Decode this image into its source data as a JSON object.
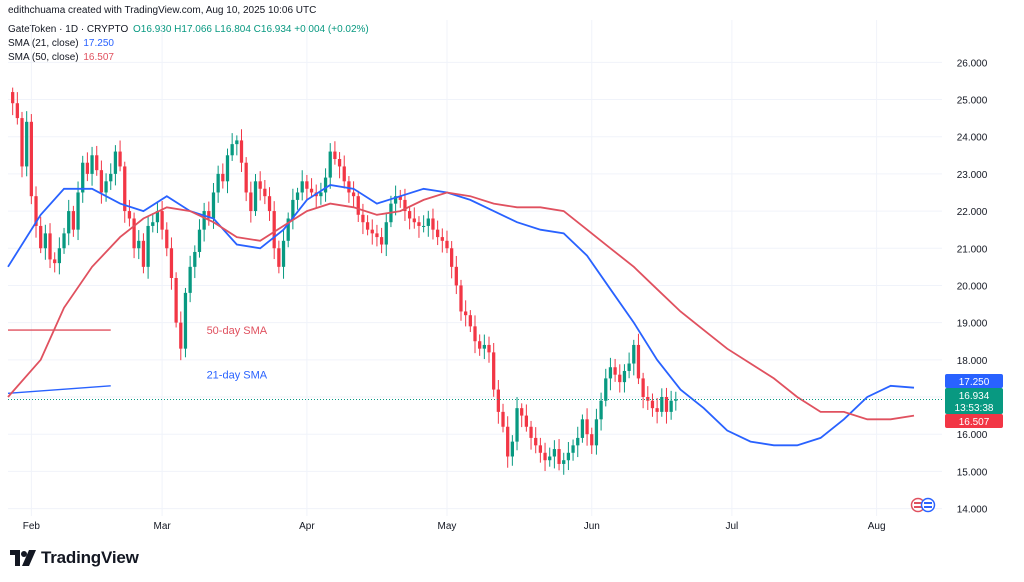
{
  "attribution": "edithchuama created with TradingView.com, Aug 10, 2025 10:06 UTC",
  "legend": {
    "symbol": "GateToken · 1D · CRYPTO",
    "ohlc": "O16.930 H17.066 L16.804 C16.934 +0.004 (+0.02%)",
    "sma21_label": "SMA (21, close)",
    "sma21_value": "17.250",
    "sma50_label": "SMA (50, close)",
    "sma50_value": "16.507"
  },
  "branding": "TradingView",
  "colors": {
    "up": "#089981",
    "down": "#f23645",
    "sma21": "#2962ff",
    "sma50": "#e0515f",
    "grid": "#f0f3fa",
    "axis_text": "#131722"
  },
  "chart_data": {
    "type": "candlestick",
    "title": "",
    "ylim": [
      13.8,
      26.6
    ],
    "y_ticks": [
      14,
      15,
      16,
      17,
      18,
      19,
      20,
      21,
      22,
      23,
      24,
      25,
      26
    ],
    "y_tick_labels": [
      "14.000",
      "15.000",
      "16.000",
      "17.000",
      "18.000",
      "19.000",
      "20.000",
      "21.000",
      "22.000",
      "23.000",
      "24.000",
      "25.000",
      "26.000"
    ],
    "x_labels": [
      "Feb",
      "Mar",
      "Apr",
      "May",
      "Jun",
      "Jul",
      "Aug"
    ],
    "x_label_days": [
      1,
      29,
      60,
      90,
      121,
      151,
      182
    ],
    "day_range": [
      -4,
      196
    ],
    "candles_from_day": -3,
    "closes": [
      24.9,
      24.5,
      23.2,
      24.4,
      22.4,
      21.6,
      21.0,
      21.4,
      20.7,
      20.6,
      21.0,
      21.4,
      22.0,
      21.5,
      22.5,
      23.3,
      23.0,
      23.5,
      23.1,
      22.5,
      22.8,
      23.0,
      23.6,
      23.2,
      22.0,
      21.8,
      21.0,
      21.2,
      20.5,
      21.6,
      21.7,
      22.0,
      21.5,
      21.0,
      20.2,
      19.0,
      18.3,
      19.8,
      20.5,
      20.9,
      21.5,
      22.0,
      21.8,
      22.5,
      23.0,
      22.8,
      23.5,
      23.8,
      23.9,
      23.3,
      22.5,
      22.0,
      22.8,
      22.6,
      22.4,
      22.0,
      21.0,
      20.5,
      21.2,
      21.8,
      22.3,
      22.5,
      22.8,
      22.6,
      22.5,
      22.4,
      22.5,
      22.9,
      23.6,
      23.4,
      23.2,
      22.8,
      22.5,
      22.4,
      21.9,
      21.7,
      21.5,
      21.4,
      21.3,
      21.1,
      21.7,
      22.2,
      22.4,
      22.3,
      22.0,
      21.8,
      21.7,
      21.6,
      21.6,
      21.8,
      21.5,
      21.3,
      21.2,
      21.0,
      20.5,
      20.0,
      19.3,
      19.2,
      18.9,
      18.5,
      18.3,
      18.4,
      18.2,
      17.2,
      16.6,
      16.2,
      15.4,
      15.8,
      16.7,
      16.5,
      16.2,
      15.9,
      15.7,
      15.5,
      15.3,
      15.4,
      15.6,
      15.2,
      15.3,
      15.5,
      15.7,
      15.9,
      16.4,
      16.0,
      15.7,
      16.4,
      16.9,
      17.5,
      17.8,
      17.6,
      17.4,
      17.7,
      17.9,
      18.4,
      17.5,
      17.0,
      16.9,
      16.7,
      16.6,
      17.0,
      16.6,
      16.9,
      16.934
    ],
    "series": [
      {
        "name": "21-day SMA",
        "x": [
          -4,
          3,
          8,
          14,
          20,
          25,
          30,
          35,
          40,
          45,
          50,
          55,
          60,
          65,
          70,
          75,
          80,
          85,
          90,
          95,
          100,
          105,
          110,
          115,
          120,
          125,
          130,
          135,
          140,
          145,
          150,
          155,
          160,
          165,
          170,
          175,
          180,
          185,
          190
        ],
        "values": [
          20.5,
          21.9,
          22.6,
          22.6,
          22.2,
          22.0,
          22.4,
          22.0,
          21.8,
          21.1,
          21.0,
          21.5,
          22.3,
          22.7,
          22.6,
          22.2,
          22.4,
          22.6,
          22.5,
          22.3,
          22.0,
          21.7,
          21.5,
          21.4,
          20.8,
          19.9,
          19.0,
          18.0,
          17.2,
          16.7,
          16.1,
          15.8,
          15.7,
          15.7,
          15.9,
          16.4,
          17.0,
          17.3,
          17.25
        ]
      },
      {
        "name": "50-day SMA",
        "x": [
          -4,
          3,
          8,
          14,
          20,
          25,
          30,
          35,
          40,
          45,
          50,
          55,
          60,
          65,
          70,
          75,
          80,
          85,
          90,
          95,
          100,
          105,
          110,
          115,
          120,
          125,
          130,
          135,
          140,
          145,
          150,
          155,
          160,
          165,
          170,
          175,
          180,
          185,
          190
        ],
        "values": [
          17.0,
          18.0,
          19.4,
          20.5,
          21.3,
          21.8,
          22.1,
          22.0,
          21.7,
          21.3,
          21.2,
          21.6,
          22.0,
          22.2,
          22.1,
          21.9,
          22.0,
          22.3,
          22.5,
          22.4,
          22.2,
          22.1,
          22.1,
          22.0,
          21.5,
          21.0,
          20.5,
          19.9,
          19.3,
          18.8,
          18.3,
          17.9,
          17.5,
          17.0,
          16.6,
          16.6,
          16.4,
          16.4,
          16.5
        ]
      }
    ],
    "annotations": [
      {
        "text": "50-day SMA",
        "color": "#e0515f"
      },
      {
        "text": "21-day SMA",
        "color": "#2962ff"
      }
    ],
    "trend_lines": [
      {
        "color": "#e0515f",
        "from": [
          -4,
          18.8
        ],
        "to": [
          18,
          18.8
        ]
      },
      {
        "color": "#2962ff",
        "from": [
          -4,
          17.1
        ],
        "to": [
          18,
          17.3
        ]
      }
    ],
    "price_labels": [
      {
        "label": "sma21",
        "value": 17.25,
        "text": "17.250",
        "color": "#2962ff"
      },
      {
        "label": "last",
        "value": 16.934,
        "text": "16.934",
        "subtext": "13:53:38",
        "color": "#089981"
      },
      {
        "label": "sma50",
        "value": 16.507,
        "text": "16.507",
        "color": "#f23645"
      }
    ],
    "last_price": 16.934,
    "grid": true,
    "legend_position": "top-left"
  }
}
